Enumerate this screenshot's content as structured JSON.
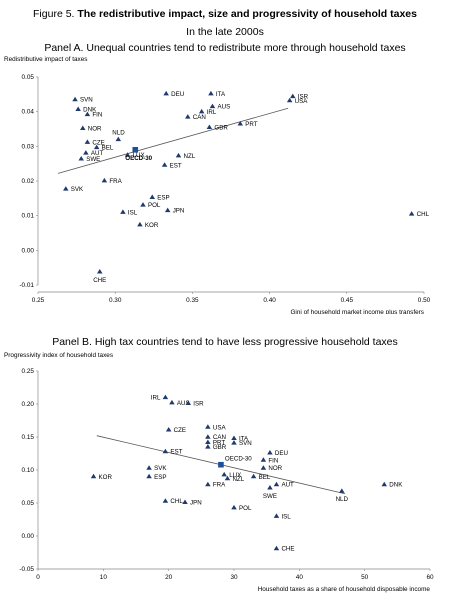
{
  "figure": {
    "label": "Figure 5.",
    "title": "The redistributive impact, size and progressivity of household taxes",
    "subtitle": "In the late 2000s"
  },
  "colors": {
    "marker": "#1f3a6e",
    "highlight": "#1f4e9a",
    "trend": "#555555",
    "axis": "#888888"
  },
  "chart_data": [
    {
      "type": "scatter",
      "panel_title": "Panel A. Unequal countries tend to redistribute more through household taxes",
      "xlabel": "Gini of household market income plus transfers",
      "ylabel": "Redistributive impact of taxes",
      "xlim": [
        0.25,
        0.5
      ],
      "ylim": [
        -0.01,
        0.05
      ],
      "xticks": [
        "0.25",
        "0.30",
        "0.35",
        "0.40",
        "0.45",
        "0.50"
      ],
      "yticks": [
        "-0.01",
        "0.00",
        "0.01",
        "0.02",
        "0.03",
        "0.04",
        "0.05"
      ],
      "trend": [
        [
          0.263,
          0.0222
        ],
        [
          0.412,
          0.041
        ]
      ],
      "highlight": {
        "name": "OECD-30",
        "x": 0.313,
        "y": 0.029
      },
      "points": [
        {
          "name": "SVN",
          "x": 0.274,
          "y": 0.0435,
          "pos": "r"
        },
        {
          "name": "DNK",
          "x": 0.276,
          "y": 0.0407,
          "pos": "r"
        },
        {
          "name": "FIN",
          "x": 0.282,
          "y": 0.0392,
          "pos": "r"
        },
        {
          "name": "NOR",
          "x": 0.279,
          "y": 0.0352,
          "pos": "r"
        },
        {
          "name": "CZE",
          "x": 0.282,
          "y": 0.0312,
          "pos": "r"
        },
        {
          "name": "BEL",
          "x": 0.288,
          "y": 0.0297,
          "pos": "r"
        },
        {
          "name": "AUT",
          "x": 0.281,
          "y": 0.0281,
          "pos": "r"
        },
        {
          "name": "SWE",
          "x": 0.278,
          "y": 0.0264,
          "pos": "r"
        },
        {
          "name": "FRA",
          "x": 0.293,
          "y": 0.0201,
          "pos": "r"
        },
        {
          "name": "SVK",
          "x": 0.268,
          "y": 0.0177,
          "pos": "r"
        },
        {
          "name": "NLD",
          "x": 0.302,
          "y": 0.032,
          "pos": "rt"
        },
        {
          "name": "LUX",
          "x": 0.308,
          "y": 0.0275,
          "pos": "r"
        },
        {
          "name": "DEU",
          "x": 0.333,
          "y": 0.0452,
          "pos": "r"
        },
        {
          "name": "ITA",
          "x": 0.362,
          "y": 0.0452,
          "pos": "r"
        },
        {
          "name": "AUS",
          "x": 0.363,
          "y": 0.0415,
          "pos": "r"
        },
        {
          "name": "IRL",
          "x": 0.356,
          "y": 0.04,
          "pos": "r"
        },
        {
          "name": "CAN",
          "x": 0.347,
          "y": 0.0385,
          "pos": "r"
        },
        {
          "name": "GBR",
          "x": 0.361,
          "y": 0.0355,
          "pos": "r"
        },
        {
          "name": "PRT",
          "x": 0.381,
          "y": 0.0365,
          "pos": "r"
        },
        {
          "name": "ISR",
          "x": 0.415,
          "y": 0.0444,
          "pos": "r"
        },
        {
          "name": "USA",
          "x": 0.413,
          "y": 0.0432,
          "pos": "r"
        },
        {
          "name": "NZL",
          "x": 0.341,
          "y": 0.0273,
          "pos": "r"
        },
        {
          "name": "EST",
          "x": 0.332,
          "y": 0.0246,
          "pos": "r"
        },
        {
          "name": "ESP",
          "x": 0.324,
          "y": 0.0153,
          "pos": "r"
        },
        {
          "name": "POL",
          "x": 0.318,
          "y": 0.0131,
          "pos": "r"
        },
        {
          "name": "ISL",
          "x": 0.305,
          "y": 0.011,
          "pos": "r"
        },
        {
          "name": "JPN",
          "x": 0.334,
          "y": 0.0115,
          "pos": "r"
        },
        {
          "name": "KOR",
          "x": 0.316,
          "y": 0.0074,
          "pos": "r"
        },
        {
          "name": "CHL",
          "x": 0.492,
          "y": 0.0105,
          "pos": "r"
        },
        {
          "name": "CHE",
          "x": 0.29,
          "y": -0.0062,
          "pos": "b"
        }
      ]
    },
    {
      "type": "scatter",
      "panel_title": "Panel B. High tax countries tend to have less progressive household taxes",
      "xlabel": "Household taxes as a share of household disposable income",
      "ylabel": "Progressivity index of household taxes",
      "xlim": [
        0,
        60
      ],
      "ylim": [
        -0.05,
        0.25
      ],
      "xticks": [
        "0",
        "10",
        "20",
        "30",
        "40",
        "50",
        "60"
      ],
      "yticks": [
        "-0.05",
        "0.00",
        "0.05",
        "0.10",
        "0.15",
        "0.20",
        "0.25"
      ],
      "trend": [
        [
          9,
          0.152
        ],
        [
          47,
          0.064
        ]
      ],
      "highlight": {
        "name": "OECD-30",
        "x": 28,
        "y": 0.108
      },
      "points": [
        {
          "name": "IRL",
          "x": 19.5,
          "y": 0.21,
          "pos": "l"
        },
        {
          "name": "AUS",
          "x": 20.5,
          "y": 0.202,
          "pos": "r"
        },
        {
          "name": "ISR",
          "x": 23,
          "y": 0.201,
          "pos": "r"
        },
        {
          "name": "CZE",
          "x": 20,
          "y": 0.161,
          "pos": "r"
        },
        {
          "name": "USA",
          "x": 26,
          "y": 0.165,
          "pos": "r"
        },
        {
          "name": "CAN",
          "x": 26,
          "y": 0.15,
          "pos": "r"
        },
        {
          "name": "PRT",
          "x": 26,
          "y": 0.142,
          "pos": "r"
        },
        {
          "name": "GBR",
          "x": 26,
          "y": 0.135,
          "pos": "r"
        },
        {
          "name": "ITA",
          "x": 30,
          "y": 0.148,
          "pos": "r"
        },
        {
          "name": "SVN",
          "x": 30,
          "y": 0.141,
          "pos": "r"
        },
        {
          "name": "EST",
          "x": 19.5,
          "y": 0.128,
          "pos": "r"
        },
        {
          "name": "DEU",
          "x": 35.5,
          "y": 0.126,
          "pos": "r"
        },
        {
          "name": "FIN",
          "x": 34.5,
          "y": 0.115,
          "pos": "r"
        },
        {
          "name": "NOR",
          "x": 34.5,
          "y": 0.103,
          "pos": "r"
        },
        {
          "name": "OECD-30",
          "x": 28,
          "y": 0.108,
          "pos": "hidden"
        },
        {
          "name": "LUX",
          "x": 28.5,
          "y": 0.093,
          "pos": "r"
        },
        {
          "name": "NZL",
          "x": 29,
          "y": 0.087,
          "pos": "r"
        },
        {
          "name": "BEL",
          "x": 33,
          "y": 0.09,
          "pos": "r"
        },
        {
          "name": "AUT",
          "x": 36.5,
          "y": 0.078,
          "pos": "r"
        },
        {
          "name": "SWE",
          "x": 35.5,
          "y": 0.073,
          "pos": "b"
        },
        {
          "name": "DNK",
          "x": 53,
          "y": 0.078,
          "pos": "r"
        },
        {
          "name": "NLD",
          "x": 46.5,
          "y": 0.068,
          "pos": "b"
        },
        {
          "name": "SVK",
          "x": 17,
          "y": 0.103,
          "pos": "r"
        },
        {
          "name": "ESP",
          "x": 17,
          "y": 0.09,
          "pos": "r"
        },
        {
          "name": "KOR",
          "x": 8.5,
          "y": 0.09,
          "pos": "r"
        },
        {
          "name": "FRA",
          "x": 26,
          "y": 0.078,
          "pos": "r"
        },
        {
          "name": "CHL",
          "x": 19.5,
          "y": 0.053,
          "pos": "r"
        },
        {
          "name": "JPN",
          "x": 22.5,
          "y": 0.051,
          "pos": "r"
        },
        {
          "name": "POL",
          "x": 30,
          "y": 0.043,
          "pos": "r"
        },
        {
          "name": "ISL",
          "x": 36.5,
          "y": 0.03,
          "pos": "r"
        },
        {
          "name": "CHE",
          "x": 36.5,
          "y": -0.019,
          "pos": "r"
        }
      ]
    }
  ]
}
